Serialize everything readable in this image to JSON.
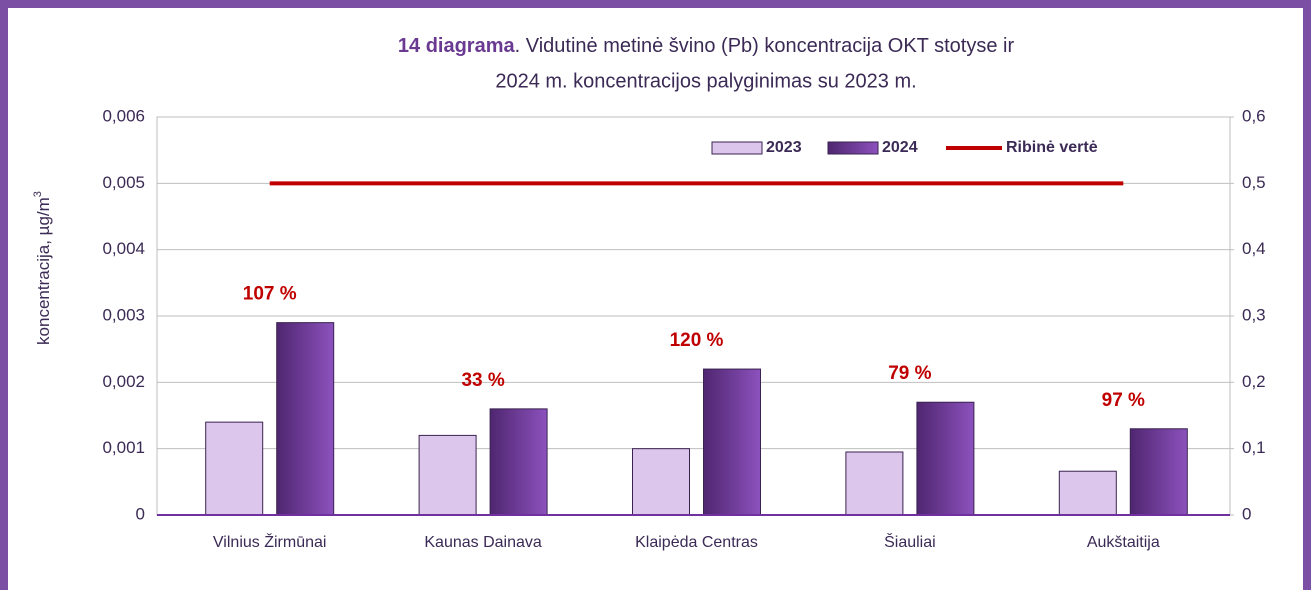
{
  "chart_data": {
    "type": "bar",
    "title_bold": "14 diagrama",
    "title_line1": ". Vidutinė metinė švino (Pb) koncentracija OKT stotyse ir",
    "title_line2": "2024 m. koncentracijos palyginimas su 2023 m.",
    "y_label": "koncentracija, µg/m",
    "y_label_sup": "3",
    "categories": [
      "Vilnius Žirmūnai",
      "Kaunas Dainava",
      "Klaipėda Centras",
      "Šiauliai",
      "Aukštaitija"
    ],
    "series": [
      {
        "name": "2023",
        "type": "bar",
        "color": "#dcc6ec",
        "values": [
          0.0014,
          0.0012,
          0.001,
          0.00095,
          0.00066
        ]
      },
      {
        "name": "2024",
        "type": "bar",
        "color": "#6b3a94",
        "values": [
          0.0029,
          0.0016,
          0.0022,
          0.0017,
          0.0013
        ]
      },
      {
        "name": "Ribinė vertė",
        "type": "line",
        "axis": "y2",
        "color": "#c00000",
        "values": [
          0.5,
          0.5,
          0.5,
          0.5,
          0.5
        ]
      }
    ],
    "change_labels": [
      "107 %",
      "33 %",
      "120 %",
      "79 %",
      "97 %"
    ],
    "ylim": [
      0,
      0.006
    ],
    "yticks": [
      0,
      {
        "value": 0.001,
        "label": "0,001"
      },
      {
        "value": 0.002,
        "label": "0,002"
      },
      {
        "value": 0.003,
        "label": "0,003"
      },
      {
        "value": 0.004,
        "label": "0,004"
      },
      {
        "value": 0.005,
        "label": "0,005"
      },
      {
        "value": 0.006,
        "label": "0,006"
      }
    ],
    "y2lim": [
      0,
      0.6
    ],
    "y2ticks": [
      0,
      {
        "value": 0.1,
        "label": "0,1"
      },
      {
        "value": 0.2,
        "label": "0,2"
      },
      {
        "value": 0.3,
        "label": "0,3"
      },
      {
        "value": 0.4,
        "label": "0,4"
      },
      {
        "value": 0.5,
        "label": "0,5"
      },
      {
        "value": 0.6,
        "label": "0,6"
      }
    ],
    "grid": true,
    "legend": "upper right"
  }
}
